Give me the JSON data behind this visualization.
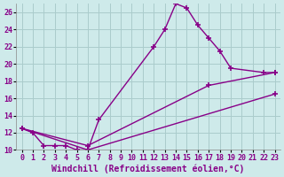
{
  "title": "",
  "xlabel": "Windchill (Refroidissement éolien,°C)",
  "background_color": "#ceeaea",
  "grid_color": "#aacccc",
  "line_color": "#880088",
  "xlim": [
    -0.5,
    23.5
  ],
  "ylim": [
    10,
    27
  ],
  "xticks": [
    0,
    1,
    2,
    3,
    4,
    5,
    6,
    7,
    8,
    9,
    10,
    11,
    12,
    13,
    14,
    15,
    16,
    17,
    18,
    19,
    20,
    21,
    22,
    23
  ],
  "yticks": [
    10,
    12,
    14,
    16,
    18,
    20,
    22,
    24,
    26
  ],
  "series": [
    {
      "x": [
        0,
        1,
        2,
        3,
        4,
        5,
        6,
        7,
        12,
        13,
        14,
        15,
        16,
        17,
        18,
        19,
        22,
        23
      ],
      "y": [
        12.5,
        12.0,
        10.5,
        10.5,
        10.5,
        10.0,
        10.0,
        13.5,
        22.0,
        24.0,
        27.0,
        26.5,
        24.5,
        23.0,
        21.5,
        19.5,
        19.0,
        19.0
      ]
    },
    {
      "x": [
        0,
        6,
        23
      ],
      "y": [
        12.5,
        10.0,
        16.5
      ]
    },
    {
      "x": [
        0,
        6,
        17,
        23
      ],
      "y": [
        12.5,
        10.5,
        17.5,
        19.0
      ]
    }
  ],
  "marker": "+",
  "markersize": 5,
  "markeredgewidth": 1.2,
  "linewidth": 1.0,
  "tick_fontsize": 6,
  "xlabel_fontsize": 7
}
